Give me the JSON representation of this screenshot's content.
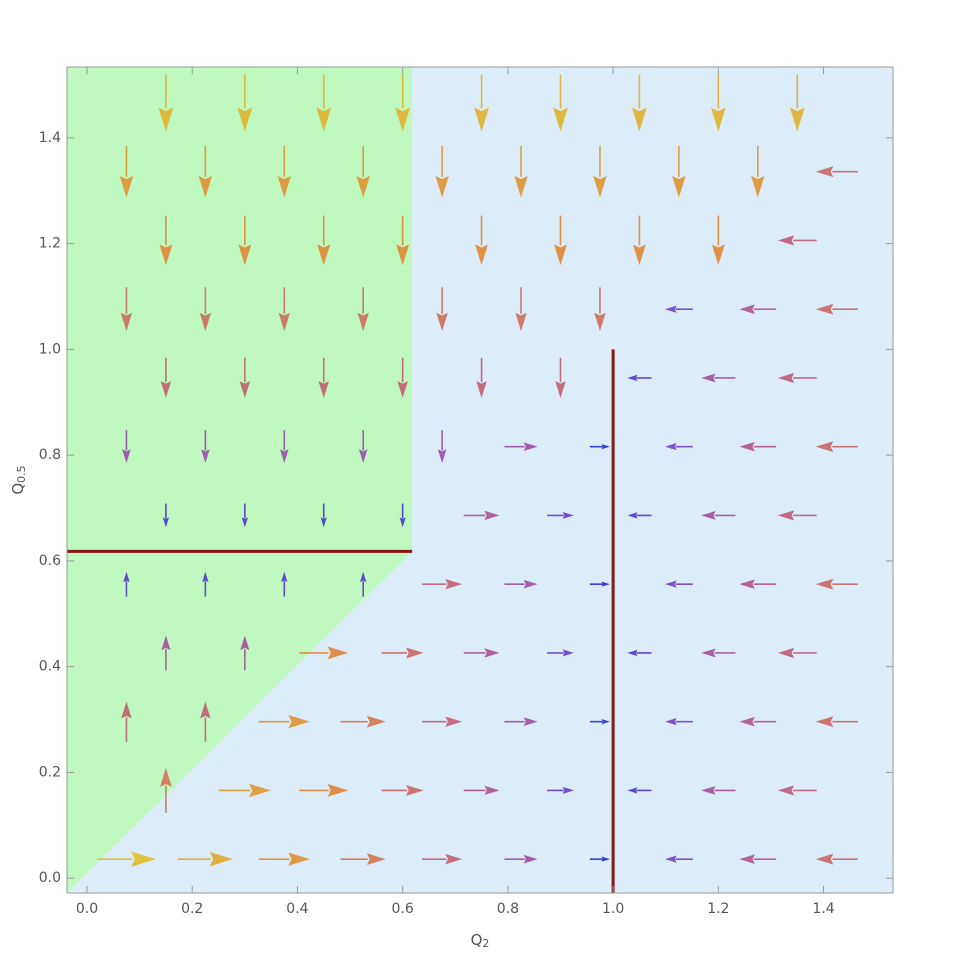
{
  "chart_data": {
    "type": "vector",
    "xlabel": {
      "text": "Q",
      "subscript": "2"
    },
    "ylabel": {
      "text": "Q",
      "subscript": "0.5"
    },
    "xlim": [
      -0.038,
      1.532
    ],
    "ylim": [
      -0.028,
      1.534
    ],
    "xticks": [
      {
        "value": 0,
        "label": "0.0"
      },
      0.2,
      0.4,
      0.6,
      0.8,
      {
        "value": 1,
        "label": "1.0"
      },
      1.2,
      1.4
    ],
    "yticks": [
      {
        "value": 0,
        "label": "0.0"
      },
      0.2,
      0.4,
      0.6,
      0.8,
      {
        "value": 1,
        "label": "1.0"
      },
      1.2,
      1.4
    ],
    "background": "#dcedf9",
    "colors": [
      "#2d2dd0",
      "#8a4bc0",
      "#c0607a",
      "#e08838",
      "#e0c030"
    ],
    "regions": [
      {
        "color": "#bff9bf",
        "x": [
          -0.038,
          0.618,
          0.618,
          -0.038
        ],
        "y": [
          -0.028,
          0.618,
          1.534,
          1.534
        ]
      }
    ],
    "lines": [
      {
        "color": "#8b1414",
        "x": [
          -0.038,
          0.618
        ],
        "y": [
          0.618,
          0.618
        ]
      },
      {
        "color": "#8b1414",
        "x": [
          1,
          1
        ],
        "y": [
          -0.028,
          1.0
        ]
      }
    ],
    "rows": [
      {
        "y": 0.036,
        "x": [
          0.075,
          0.225,
          0.375,
          0.525,
          0.675,
          0.825,
          0.975,
          1.125,
          1.275,
          1.425
        ],
        "u": [
          0.112,
          0.105,
          0.097,
          0.086,
          0.076,
          0.063,
          0.038,
          -0.053,
          -0.07,
          -0.08
        ],
        "v": [
          0,
          0,
          0,
          0,
          0,
          0,
          0,
          0,
          0,
          0
        ]
      },
      {
        "y": 0.166,
        "x": [
          0.15,
          0.3,
          0.45,
          0.6,
          0.75,
          0.9,
          1.05,
          1.2,
          1.35
        ],
        "u": [
          0,
          0.099,
          0.093,
          0.08,
          0.068,
          0.051,
          -0.046,
          -0.065,
          -0.074
        ],
        "v": [
          0.085,
          0,
          0,
          0,
          0,
          0,
          0,
          0,
          0
        ]
      },
      {
        "y": 0.296,
        "x": [
          0.075,
          0.225,
          0.375,
          0.525,
          0.675,
          0.825,
          0.975,
          1.125,
          1.275,
          1.425
        ],
        "u": [
          0,
          0,
          0.097,
          0.086,
          0.076,
          0.063,
          0.038,
          -0.053,
          -0.07,
          -0.08
        ],
        "v": [
          0.076,
          0.076,
          0,
          0,
          0,
          0,
          0,
          0,
          0,
          0
        ]
      },
      {
        "y": 0.426,
        "x": [
          0.15,
          0.3,
          0.45,
          0.6,
          0.75,
          0.9,
          1.05,
          1.2,
          1.35
        ],
        "u": [
          0,
          0,
          0.093,
          0.08,
          0.068,
          0.051,
          -0.046,
          -0.065,
          -0.074
        ],
        "v": [
          0.066,
          0.066,
          0,
          0,
          0,
          0,
          0,
          0,
          0
        ]
      },
      {
        "y": 0.556,
        "x": [
          0.075,
          0.225,
          0.375,
          0.525,
          0.675,
          0.825,
          0.975,
          1.125,
          1.275,
          1.425
        ],
        "u": [
          0,
          0,
          0,
          0,
          0.076,
          0.063,
          0.038,
          -0.053,
          -0.07,
          -0.08
        ],
        "v": [
          0.047,
          0.047,
          0.047,
          0.047,
          0,
          0,
          0,
          0,
          0,
          0
        ]
      },
      {
        "y": 0.686,
        "x": [
          0.15,
          0.3,
          0.45,
          0.6,
          0.75,
          0.9,
          1.05,
          1.2,
          1.35
        ],
        "u": [
          0,
          0,
          0,
          0,
          0.068,
          0.051,
          -0.046,
          -0.065,
          -0.074
        ],
        "v": [
          -0.045,
          -0.045,
          -0.045,
          -0.045,
          0,
          0,
          0,
          0,
          0
        ]
      },
      {
        "y": 0.816,
        "x": [
          0.075,
          0.225,
          0.375,
          0.525,
          0.675,
          0.825,
          0.975,
          1.125,
          1.275,
          1.425
        ],
        "u": [
          0,
          0,
          0,
          0,
          0,
          0.063,
          0.038,
          -0.053,
          -0.07,
          -0.08
        ],
        "v": [
          -0.062,
          -0.062,
          -0.062,
          -0.062,
          -0.062,
          0,
          0,
          0,
          0,
          0
        ]
      },
      {
        "y": 0.946,
        "x": [
          0.15,
          0.3,
          0.45,
          0.6,
          0.75,
          0.9,
          1.05,
          1.2,
          1.35
        ],
        "u": [
          0,
          0,
          0,
          0,
          0,
          0,
          -0.046,
          -0.065,
          -0.074
        ],
        "v": [
          -0.076,
          -0.076,
          -0.076,
          -0.076,
          -0.076,
          -0.076,
          0,
          0,
          0
        ]
      },
      {
        "y": 1.076,
        "x": [
          0.075,
          0.225,
          0.375,
          0.525,
          0.675,
          0.825,
          0.975,
          1.125,
          1.275,
          1.425
        ],
        "u": [
          0,
          0,
          0,
          0,
          0,
          0,
          0,
          -0.053,
          -0.07,
          -0.08
        ],
        "v": [
          -0.083,
          -0.083,
          -0.083,
          -0.083,
          -0.083,
          -0.083,
          -0.083,
          0,
          0,
          0
        ]
      },
      {
        "y": 1.206,
        "x": [
          0.15,
          0.3,
          0.45,
          0.6,
          0.75,
          0.9,
          1.05,
          1.2,
          1.35
        ],
        "u": [
          0,
          0,
          0,
          0,
          0,
          0,
          0,
          0,
          -0.074
        ],
        "v": [
          -0.094,
          -0.094,
          -0.094,
          -0.094,
          -0.094,
          -0.094,
          -0.094,
          -0.094,
          0
        ]
      },
      {
        "y": 1.336,
        "x": [
          0.075,
          0.225,
          0.375,
          0.525,
          0.675,
          0.825,
          0.975,
          1.125,
          1.275,
          1.425
        ],
        "u": [
          0,
          0,
          0,
          0,
          0,
          0,
          0,
          0,
          0,
          -0.08
        ],
        "v": [
          -0.098,
          -0.098,
          -0.098,
          -0.098,
          -0.098,
          -0.098,
          -0.098,
          -0.098,
          -0.098,
          0
        ]
      },
      {
        "y": 1.466,
        "x": [
          0.15,
          0.3,
          0.45,
          0.6,
          0.75,
          0.9,
          1.05,
          1.2,
          1.35
        ],
        "u": [
          0,
          0,
          0,
          0,
          0,
          0,
          0,
          0,
          0
        ],
        "v": [
          -0.108,
          -0.108,
          -0.108,
          -0.108,
          -0.108,
          -0.108,
          -0.108,
          -0.108,
          -0.108
        ]
      }
    ]
  }
}
